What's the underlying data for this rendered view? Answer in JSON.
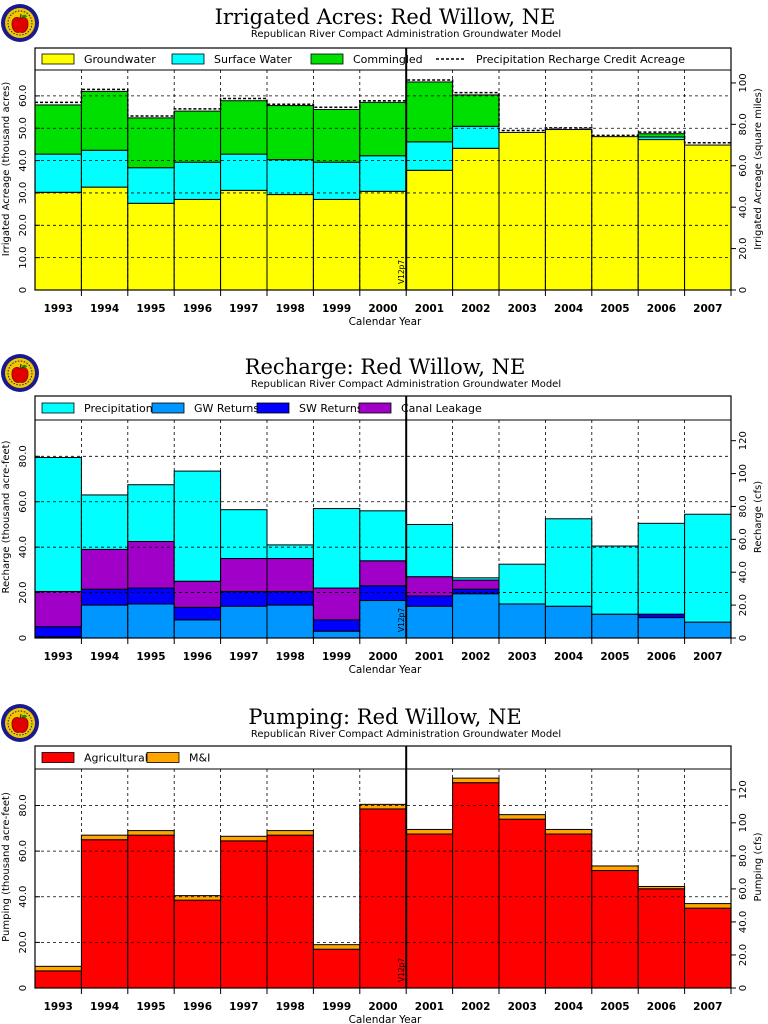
{
  "charts": [
    {
      "title": "Irrigated Acres: Red Willow, NE",
      "subtitle": "Republican River Compact Administration Groundwater Model",
      "chart_data": {
        "type": "bar",
        "stacked": true,
        "categories": [
          "1993",
          "1994",
          "1995",
          "1996",
          "1997",
          "1998",
          "1999",
          "2000",
          "2001",
          "2002",
          "2003",
          "2004",
          "2005",
          "2006",
          "2007"
        ],
        "series": [
          {
            "name": "Groundwater",
            "color": "#ffff00",
            "values": [
              30.2,
              31.8,
              26.8,
              28.0,
              30.8,
              29.5,
              28.0,
              30.5,
              37.0,
              43.8,
              48.7,
              49.6,
              47.4,
              46.5,
              44.8
            ]
          },
          {
            "name": "Surface Water",
            "color": "#00ffff",
            "values": [
              11.8,
              11.4,
              11.0,
              11.5,
              11.2,
              10.8,
              11.5,
              11.0,
              8.8,
              6.8,
              0.0,
              0.0,
              0.0,
              0.8,
              0.0
            ]
          },
          {
            "name": "Commingled",
            "color": "#00e000",
            "values": [
              15.2,
              18.2,
              15.4,
              15.8,
              16.5,
              16.7,
              16.3,
              16.5,
              18.5,
              9.7,
              0.0,
              0.0,
              0.0,
              1.0,
              0.0
            ]
          }
        ],
        "line_series": {
          "name": "Precipitation Recharge Credit Acreage",
          "values": [
            58.0,
            62.0,
            53.8,
            56.0,
            59.2,
            57.4,
            56.5,
            58.5,
            64.9,
            61.0,
            49.3,
            50.1,
            47.8,
            48.8,
            45.5
          ]
        },
        "ylabel": "Irrigated Acreage (thousand acres)",
        "ylabel_right": "Irrigated Acreage (square miles)",
        "xlabel": "Calendar Year",
        "ylim": [
          0,
          68
        ],
        "yticks": [
          "0",
          "10.0",
          "20.0",
          "30.0",
          "40.0",
          "50.0",
          "60.0"
        ],
        "right_conv": 1.5625,
        "right_ticks": [
          "0",
          "20.0",
          "40.0",
          "60.0",
          "80.0",
          "100"
        ],
        "marker_label": "V12p7",
        "grid": true,
        "legend_position": "top"
      }
    },
    {
      "title": "Recharge: Red Willow, NE",
      "subtitle": "Republican River Compact Administration Groundwater Model",
      "chart_data": {
        "type": "bar",
        "stacked": true,
        "categories": [
          "1993",
          "1994",
          "1995",
          "1996",
          "1997",
          "1998",
          "1999",
          "2000",
          "2001",
          "2002",
          "2003",
          "2004",
          "2005",
          "2006",
          "2007"
        ],
        "series": [
          {
            "name": "GW Returns",
            "color": "#0096ff",
            "values": [
              0.5,
              14.5,
              15.0,
              8.0,
              14.0,
              14.5,
              3.0,
              16.5,
              14.0,
              19.5,
              15.0,
              14.0,
              10.5,
              9.0,
              7.0
            ]
          },
          {
            "name": "SW Returns",
            "color": "#0000ff",
            "values": [
              4.5,
              7.0,
              7.0,
              5.5,
              6.5,
              6.0,
              5.0,
              6.5,
              4.5,
              2.0,
              0.0,
              0.0,
              0.0,
              1.5,
              0.0
            ]
          },
          {
            "name": "Canal Leakage",
            "color": "#a000c8",
            "values": [
              15.5,
              17.5,
              20.5,
              11.5,
              14.5,
              14.5,
              14.0,
              11.0,
              8.5,
              4.0,
              0.0,
              0.0,
              0.0,
              0.0,
              0.0
            ]
          },
          {
            "name": "Precipitation",
            "color": "#00ffff",
            "values": [
              59.0,
              24.0,
              25.0,
              48.5,
              21.5,
              6.0,
              35.0,
              22.0,
              23.0,
              1.0,
              17.5,
              38.5,
              30.0,
              40.0,
              47.5
            ]
          }
        ],
        "ylabel": "Recharge (thousand acre-feet)",
        "ylabel_right": "Recharge (cfs)",
        "xlabel": "Calendar Year",
        "ylim": [
          0,
          96
        ],
        "yticks": [
          "0",
          "20.0",
          "40.0",
          "60.0",
          "80.0"
        ],
        "right_conv": 1.381,
        "right_ticks": [
          "0",
          "20.0",
          "40.0",
          "60.0",
          "80.0",
          "100",
          "120"
        ],
        "marker_label": "V12p7",
        "grid": true,
        "legend_position": "top"
      }
    },
    {
      "title": "Pumping: Red Willow, NE",
      "subtitle": "Republican River Compact Administration Groundwater Model",
      "chart_data": {
        "type": "bar",
        "stacked": true,
        "categories": [
          "1993",
          "1994",
          "1995",
          "1996",
          "1997",
          "1998",
          "1999",
          "2000",
          "2001",
          "2002",
          "2003",
          "2004",
          "2005",
          "2006",
          "2007"
        ],
        "series": [
          {
            "name": "Agricultural",
            "color": "#ff0000",
            "values": [
              7.5,
              65.0,
              67.0,
              38.5,
              64.5,
              67.0,
              17.0,
              78.5,
              67.5,
              90.0,
              74.0,
              67.5,
              51.5,
              43.5,
              35.0
            ]
          },
          {
            "name": "M&I",
            "color": "#ffa500",
            "values": [
              2.0,
              2.0,
              2.0,
              2.0,
              2.0,
              2.0,
              2.0,
              2.0,
              2.0,
              2.0,
              2.0,
              2.0,
              2.0,
              1.0,
              2.0
            ]
          }
        ],
        "ylabel": "Pumping (thousand acre-feet)",
        "ylabel_right": "Pumping (cfs)",
        "xlabel": "Calendar Year",
        "ylim": [
          0,
          96
        ],
        "yticks": [
          "0",
          "20.0",
          "40.0",
          "60.0",
          "80.0"
        ],
        "right_conv": 1.381,
        "right_ticks": [
          "0",
          "20.0",
          "40.0",
          "60.0",
          "80.0",
          "100",
          "120"
        ],
        "marker_label": "V12p7",
        "grid": true,
        "legend_position": "top"
      }
    }
  ]
}
